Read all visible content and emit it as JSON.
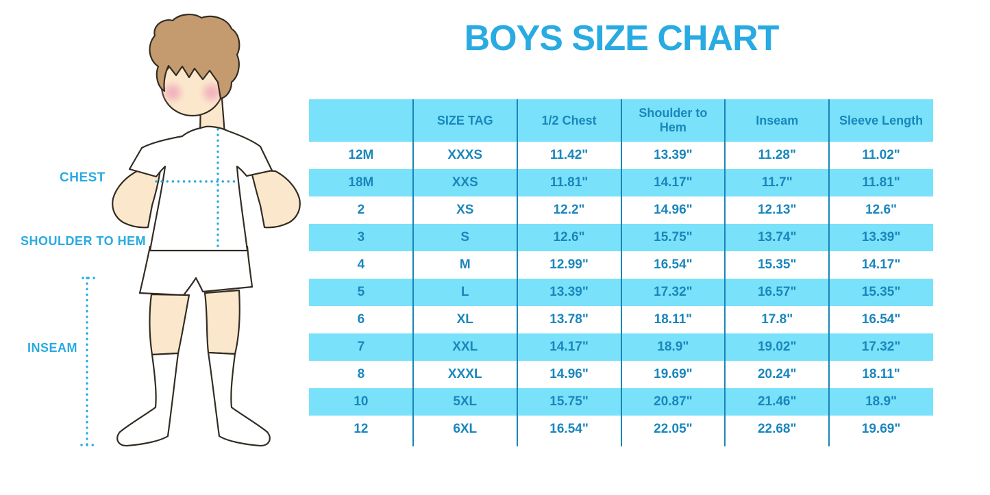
{
  "title": "BOYS SIZE CHART",
  "figure": {
    "chest_label": "CHEST",
    "shoulder_label": "SHOULDER TO HEM",
    "inseam_label": "INSEAM"
  },
  "colors": {
    "accent_blue": "#29ABE2",
    "row_cyan": "#79E1F9",
    "table_text": "#1A86BC",
    "divider": "#1B84B8",
    "skin": "#FBE8CC",
    "hair": "#C49B6E",
    "cheek": "#EFA3B8"
  },
  "chart_data": {
    "type": "table",
    "title": "BOYS SIZE CHART",
    "columns": [
      "",
      "SIZE TAG",
      "1/2 Chest",
      "Shoulder to Hem",
      "Inseam",
      "Sleeve Length"
    ],
    "rows": [
      [
        "12M",
        "XXXS",
        "11.42\"",
        "13.39\"",
        "11.28\"",
        "11.02\""
      ],
      [
        "18M",
        "XXS",
        "11.81\"",
        "14.17\"",
        "11.7\"",
        "11.81\""
      ],
      [
        "2",
        "XS",
        "12.2\"",
        "14.96\"",
        "12.13\"",
        "12.6\""
      ],
      [
        "3",
        "S",
        "12.6\"",
        "15.75\"",
        "13.74\"",
        "13.39\""
      ],
      [
        "4",
        "M",
        "12.99\"",
        "16.54\"",
        "15.35\"",
        "14.17\""
      ],
      [
        "5",
        "L",
        "13.39\"",
        "17.32\"",
        "16.57\"",
        "15.35\""
      ],
      [
        "6",
        "XL",
        "13.78\"",
        "18.11\"",
        "17.8\"",
        "16.54\""
      ],
      [
        "7",
        "XXL",
        "14.17\"",
        "18.9\"",
        "19.02\"",
        "17.32\""
      ],
      [
        "8",
        "XXXL",
        "14.96\"",
        "19.69\"",
        "20.24\"",
        "18.11\""
      ],
      [
        "10",
        "5XL",
        "15.75\"",
        "20.87\"",
        "21.46\"",
        "18.9\""
      ],
      [
        "12",
        "6XL",
        "16.54\"",
        "22.05\"",
        "22.68\"",
        "19.69\""
      ]
    ],
    "layout": {
      "header_row_striped": true,
      "alternating_row_colors": [
        "#FFFFFF",
        "#79E1F9"
      ],
      "column_dividers": true
    }
  }
}
